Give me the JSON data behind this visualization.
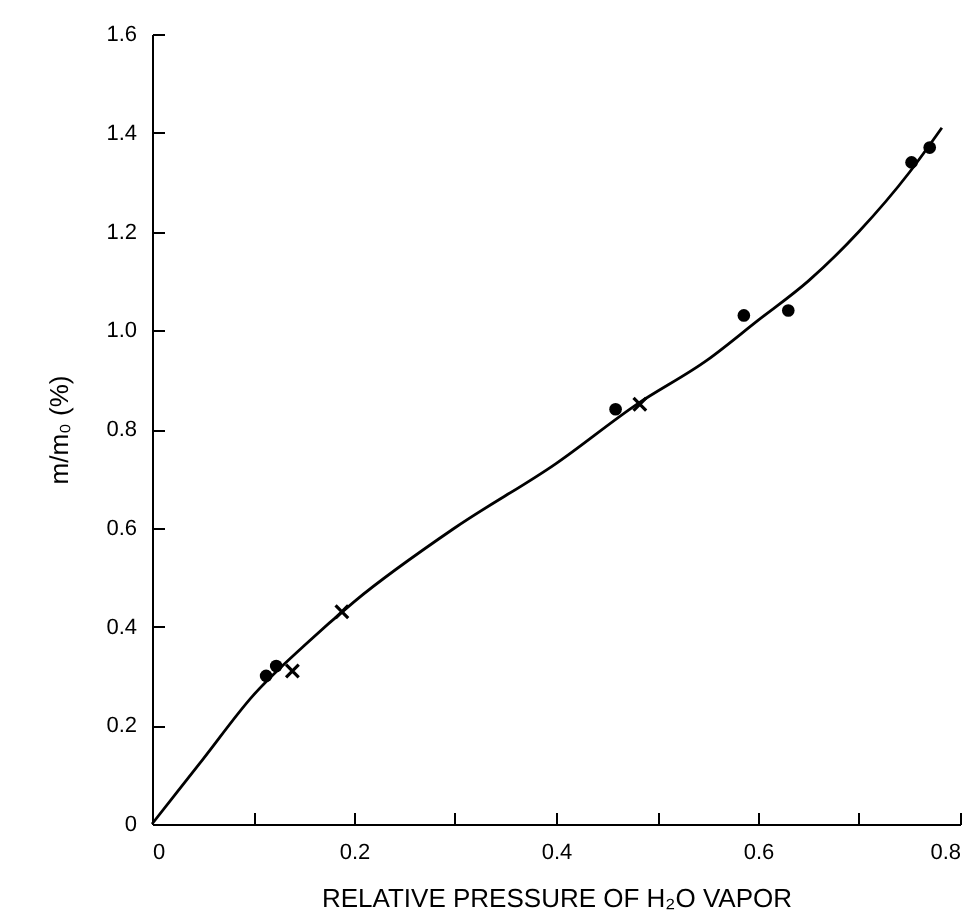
{
  "chart_data": {
    "type": "scatter",
    "xlabel": "RELATIVE PRESSURE OF H₂O VAPOR",
    "ylabel": "m/m₀ (%)",
    "xlim": [
      0,
      0.8
    ],
    "ylim": [
      0,
      1.6
    ],
    "xticks": [
      0,
      {
        "value": 0.1,
        "label": null
      },
      0.2,
      {
        "value": 0.3,
        "label": null
      },
      0.4,
      {
        "value": 0.5,
        "label": null
      },
      0.6,
      {
        "value": 0.7,
        "label": null
      },
      0.8
    ],
    "yticks": [
      0,
      0.2,
      0.4,
      0.6,
      0.8,
      {
        "value": 1,
        "label": "1.0"
      },
      1.2,
      1.4,
      1.6
    ],
    "grid": false,
    "series": [
      {
        "marker": "circle",
        "color": "#000000",
        "x": [
          0.113,
          0.123,
          0.459,
          0.586,
          0.63,
          0.752,
          0.77
        ],
        "values": [
          0.3,
          0.32,
          0.84,
          1.03,
          1.04,
          1.34,
          1.37
        ]
      },
      {
        "marker": "cross",
        "color": "#000000",
        "x": [
          0.139,
          0.188,
          0.483
        ],
        "values": [
          0.31,
          0.43,
          0.85
        ]
      },
      {
        "type": "line",
        "marker": "none",
        "line_style": "solid",
        "color": "#000000",
        "x": [
          0,
          0.05,
          0.1,
          0.15,
          0.2,
          0.3,
          0.4,
          0.48,
          0.55,
          0.6,
          0.65,
          0.7,
          0.75,
          0.782
        ],
        "values": [
          0,
          0.13,
          0.26,
          0.36,
          0.45,
          0.6,
          0.73,
          0.85,
          0.94,
          1.02,
          1.1,
          1.2,
          1.32,
          1.41
        ]
      }
    ]
  }
}
